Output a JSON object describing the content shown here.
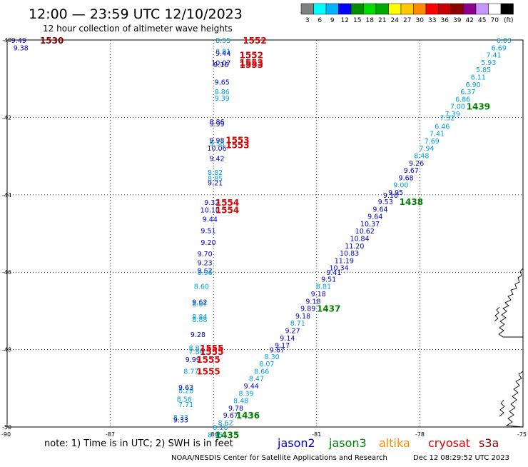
{
  "header": {
    "title": "12:00 — 23:59 UTC 12/10/2023",
    "subtitle": "12 hour collection of altimeter wave heights"
  },
  "colorbar": {
    "colors": [
      "#808080",
      "#00ffff",
      "#00b4ff",
      "#0000ff",
      "#008c00",
      "#00dc00",
      "#00aa00",
      "#ffff00",
      "#ffc800",
      "#ff8c00",
      "#ff0000",
      "#c80000",
      "#8c0000",
      "#8c008c",
      "#c896ff",
      "#ffffff",
      "#000000"
    ],
    "labels": [
      "3",
      "6",
      "9",
      "12",
      "15",
      "18",
      "21",
      "24",
      "27",
      "30",
      "33",
      "36",
      "39",
      "42",
      "45",
      "70",
      "(ft)"
    ]
  },
  "footer": {
    "note": "note:  1) Time is in UTC; 2) SWH is in feet",
    "credit": "NOAA/NESDIS Center for Satellite Applications and Research",
    "timestamp": "Dec 12 08:29:52 UTC 2023"
  },
  "legend": [
    {
      "name": "jason2",
      "color": "#0000cc"
    },
    {
      "name": "jason3",
      "color": "#008000"
    },
    {
      "name": "altika",
      "color": "#ff8c00"
    },
    {
      "name": "cryosat",
      "color": "#dd0000"
    },
    {
      "name": "s3a",
      "color": "#8b0000"
    }
  ],
  "chart_data": {
    "type": "scatter",
    "title": "12:00 — 23:59 UTC 12/10/2023",
    "subtitle": "12 hour collection of altimeter wave heights",
    "units": "ft",
    "xlim": [
      -90,
      -75
    ],
    "ylim": [
      -50,
      -40
    ],
    "x_ticks": [
      -90,
      -87,
      -84,
      -81,
      -78,
      -75
    ],
    "x_tick_labels": [
      "-90",
      "-87",
      "-84",
      "-81",
      "-78",
      "-75"
    ],
    "y_ticks": [
      -50,
      -48,
      -46,
      -44,
      -42,
      -40
    ],
    "y_tick_labels": [
      "-50",
      "-48",
      "-46",
      "-44",
      "-42",
      "-40"
    ],
    "grid": true,
    "points": [
      {
        "lon": -89.66,
        "lat": -40.0,
        "swh": "9.49",
        "sat": "jason2"
      },
      {
        "lon": -89.6,
        "lat": -40.19,
        "swh": "9.38",
        "sat": "jason2"
      },
      {
        "lon": -83.72,
        "lat": -40.0,
        "swh": "8.55",
        "sat": "altika"
      },
      {
        "lon": -83.72,
        "lat": -40.29,
        "swh": "8.81",
        "sat": "altika"
      },
      {
        "lon": -83.72,
        "lat": -40.33,
        "swh": "9.44",
        "sat": "jason2"
      },
      {
        "lon": -83.78,
        "lat": -40.58,
        "swh": "10.07",
        "sat": "jason2"
      },
      {
        "lon": -83.78,
        "lat": -40.63,
        "swh": "9.16",
        "sat": "jason2"
      },
      {
        "lon": -83.75,
        "lat": -41.08,
        "swh": "9.65",
        "sat": "jason2"
      },
      {
        "lon": -83.75,
        "lat": -41.33,
        "swh": "8.86",
        "sat": "altika"
      },
      {
        "lon": -83.75,
        "lat": -41.49,
        "swh": "9.39",
        "sat": "altika"
      },
      {
        "lon": -83.9,
        "lat": -42.1,
        "swh": "8.86",
        "sat": "jason2"
      },
      {
        "lon": -83.9,
        "lat": -42.16,
        "swh": "9.99",
        "sat": "jason2"
      },
      {
        "lon": -83.9,
        "lat": -42.58,
        "swh": "9.98",
        "sat": "jason2"
      },
      {
        "lon": -83.9,
        "lat": -42.67,
        "swh": "9.56",
        "sat": "altika"
      },
      {
        "lon": -83.9,
        "lat": -42.79,
        "swh": "10.06",
        "sat": "jason2"
      },
      {
        "lon": -83.9,
        "lat": -43.05,
        "swh": "9.42",
        "sat": "jason2"
      },
      {
        "lon": -83.95,
        "lat": -43.41,
        "swh": "8.82",
        "sat": "altika"
      },
      {
        "lon": -83.95,
        "lat": -43.57,
        "swh": "8.85",
        "sat": "altika"
      },
      {
        "lon": -83.95,
        "lat": -43.68,
        "swh": "9.21",
        "sat": "jason2"
      },
      {
        "lon": -84.05,
        "lat": -44.19,
        "swh": "9.32",
        "sat": "jason2"
      },
      {
        "lon": -84.1,
        "lat": -44.38,
        "swh": "10.10",
        "sat": "jason2"
      },
      {
        "lon": -84.1,
        "lat": -44.62,
        "swh": "9.44",
        "sat": "jason2"
      },
      {
        "lon": -84.15,
        "lat": -44.92,
        "swh": "9.51",
        "sat": "jason2"
      },
      {
        "lon": -84.15,
        "lat": -45.22,
        "swh": "9.20",
        "sat": "jason2"
      },
      {
        "lon": -84.25,
        "lat": -45.52,
        "swh": "9.70",
        "sat": "jason2"
      },
      {
        "lon": -84.25,
        "lat": -45.75,
        "swh": "9.23",
        "sat": "jason2"
      },
      {
        "lon": -84.25,
        "lat": -45.95,
        "swh": "9.62",
        "sat": "jason2"
      },
      {
        "lon": -84.25,
        "lat": -46.0,
        "swh": "8.96",
        "sat": "altika"
      },
      {
        "lon": -84.35,
        "lat": -46.36,
        "swh": "8.60",
        "sat": "altika"
      },
      {
        "lon": -84.4,
        "lat": -46.76,
        "swh": "9.62",
        "sat": "jason2"
      },
      {
        "lon": -84.4,
        "lat": -46.81,
        "swh": "8.67",
        "sat": "altika"
      },
      {
        "lon": -84.4,
        "lat": -47.14,
        "swh": "8.84",
        "sat": "altika"
      },
      {
        "lon": -84.4,
        "lat": -47.21,
        "swh": "8.88",
        "sat": "altika"
      },
      {
        "lon": -84.45,
        "lat": -47.6,
        "swh": "9.28",
        "sat": "jason2"
      },
      {
        "lon": -84.5,
        "lat": -47.95,
        "swh": "8.82",
        "sat": "altika"
      },
      {
        "lon": -84.5,
        "lat": -48.04,
        "swh": "7.84",
        "sat": "altika"
      },
      {
        "lon": -84.6,
        "lat": -48.25,
        "swh": "9.99",
        "sat": "jason2"
      },
      {
        "lon": -84.65,
        "lat": -48.55,
        "swh": "8.77",
        "sat": "altika"
      },
      {
        "lon": -84.8,
        "lat": -48.97,
        "swh": "9.63",
        "sat": "jason2"
      },
      {
        "lon": -84.8,
        "lat": -49.05,
        "swh": "8.28",
        "sat": "altika"
      },
      {
        "lon": -84.85,
        "lat": -49.27,
        "swh": "8.56",
        "sat": "altika"
      },
      {
        "lon": -84.8,
        "lat": -49.41,
        "swh": "7.71",
        "sat": "altika"
      },
      {
        "lon": -84.95,
        "lat": -49.74,
        "swh": "8.33",
        "sat": "altika"
      },
      {
        "lon": -84.95,
        "lat": -49.81,
        "swh": "9.33",
        "sat": "jason2"
      },
      {
        "lon": -75.55,
        "lat": -40.0,
        "swh": "6.03",
        "sat": "altika"
      },
      {
        "lon": -75.7,
        "lat": -40.19,
        "swh": "6.69",
        "sat": "altika"
      },
      {
        "lon": -75.85,
        "lat": -40.38,
        "swh": "7.41",
        "sat": "altika"
      },
      {
        "lon": -76.0,
        "lat": -40.57,
        "swh": "5.93",
        "sat": "altika"
      },
      {
        "lon": -76.15,
        "lat": -40.76,
        "swh": "5.85",
        "sat": "altika"
      },
      {
        "lon": -76.3,
        "lat": -40.95,
        "swh": "6.11",
        "sat": "altika"
      },
      {
        "lon": -76.45,
        "lat": -41.14,
        "swh": "6.90",
        "sat": "altika"
      },
      {
        "lon": -76.6,
        "lat": -41.33,
        "swh": "6.37",
        "sat": "altika"
      },
      {
        "lon": -76.75,
        "lat": -41.52,
        "swh": "6.86",
        "sat": "altika"
      },
      {
        "lon": -76.9,
        "lat": -41.71,
        "swh": "7.00",
        "sat": "altika"
      },
      {
        "lon": -77.05,
        "lat": -41.9,
        "swh": "7.39",
        "sat": "altika"
      },
      {
        "lon": -77.2,
        "lat": -42.0,
        "swh": "7.32",
        "sat": "altika"
      },
      {
        "lon": -77.35,
        "lat": -42.22,
        "swh": "6.46",
        "sat": "altika"
      },
      {
        "lon": -77.5,
        "lat": -42.41,
        "swh": "7.41",
        "sat": "altika"
      },
      {
        "lon": -77.65,
        "lat": -42.6,
        "swh": "7.69",
        "sat": "altika"
      },
      {
        "lon": -77.8,
        "lat": -42.79,
        "swh": "7.94",
        "sat": "altika"
      },
      {
        "lon": -77.95,
        "lat": -42.98,
        "swh": "8.48",
        "sat": "altika"
      },
      {
        "lon": -78.1,
        "lat": -43.17,
        "swh": "9.26",
        "sat": "jason2"
      },
      {
        "lon": -78.25,
        "lat": -43.36,
        "swh": "9.67",
        "sat": "jason2"
      },
      {
        "lon": -78.4,
        "lat": -43.55,
        "swh": "9.68",
        "sat": "jason2"
      },
      {
        "lon": -78.55,
        "lat": -43.74,
        "swh": "9.00",
        "sat": "altika"
      },
      {
        "lon": -78.7,
        "lat": -43.93,
        "swh": "9.95",
        "sat": "jason2"
      },
      {
        "lon": -78.85,
        "lat": -44.0,
        "swh": "9.10",
        "sat": "jason2"
      },
      {
        "lon": -79.0,
        "lat": -44.17,
        "swh": "9.53",
        "sat": "jason2"
      },
      {
        "lon": -79.15,
        "lat": -44.36,
        "swh": "9.64",
        "sat": "jason2"
      },
      {
        "lon": -79.3,
        "lat": -44.55,
        "swh": "9.64",
        "sat": "jason2"
      },
      {
        "lon": -79.45,
        "lat": -44.74,
        "swh": "10.37",
        "sat": "jason2"
      },
      {
        "lon": -79.6,
        "lat": -44.93,
        "swh": "10.62",
        "sat": "jason2"
      },
      {
        "lon": -79.75,
        "lat": -45.12,
        "swh": "10.84",
        "sat": "jason2"
      },
      {
        "lon": -79.9,
        "lat": -45.31,
        "swh": "11.20",
        "sat": "jason2"
      },
      {
        "lon": -80.05,
        "lat": -45.5,
        "swh": "10.83",
        "sat": "jason2"
      },
      {
        "lon": -80.2,
        "lat": -45.69,
        "swh": "11.19",
        "sat": "jason2"
      },
      {
        "lon": -80.35,
        "lat": -45.88,
        "swh": "10.34",
        "sat": "jason2"
      },
      {
        "lon": -80.5,
        "lat": -46.0,
        "swh": "9.41",
        "sat": "jason2"
      },
      {
        "lon": -80.65,
        "lat": -46.17,
        "swh": "9.51",
        "sat": "jason2"
      },
      {
        "lon": -80.8,
        "lat": -46.36,
        "swh": "8.81",
        "sat": "altika"
      },
      {
        "lon": -80.95,
        "lat": -46.55,
        "swh": "9.18",
        "sat": "jason2"
      },
      {
        "lon": -81.1,
        "lat": -46.74,
        "swh": "9.18",
        "sat": "jason2"
      },
      {
        "lon": -81.25,
        "lat": -46.93,
        "swh": "9.89",
        "sat": "jason2"
      },
      {
        "lon": -81.4,
        "lat": -47.12,
        "swh": "9.18",
        "sat": "jason2"
      },
      {
        "lon": -81.55,
        "lat": -47.31,
        "swh": "8.71",
        "sat": "altika"
      },
      {
        "lon": -81.7,
        "lat": -47.5,
        "swh": "9.27",
        "sat": "jason2"
      },
      {
        "lon": -81.85,
        "lat": -47.69,
        "swh": "9.14",
        "sat": "jason2"
      },
      {
        "lon": -82.0,
        "lat": -47.88,
        "swh": "9.17",
        "sat": "jason2"
      },
      {
        "lon": -82.15,
        "lat": -48.0,
        "swh": "9.67",
        "sat": "jason2"
      },
      {
        "lon": -82.3,
        "lat": -48.17,
        "swh": "8.30",
        "sat": "altika"
      },
      {
        "lon": -82.45,
        "lat": -48.36,
        "swh": "8.07",
        "sat": "altika"
      },
      {
        "lon": -82.6,
        "lat": -48.55,
        "swh": "8.66",
        "sat": "altika"
      },
      {
        "lon": -82.75,
        "lat": -48.74,
        "swh": "8.47",
        "sat": "altika"
      },
      {
        "lon": -82.9,
        "lat": -48.93,
        "swh": "9.44",
        "sat": "jason2"
      },
      {
        "lon": -83.05,
        "lat": -49.12,
        "swh": "8.39",
        "sat": "altika"
      },
      {
        "lon": -83.2,
        "lat": -49.31,
        "swh": "8.48",
        "sat": "altika"
      },
      {
        "lon": -83.35,
        "lat": -49.5,
        "swh": "9.78",
        "sat": "jason2"
      },
      {
        "lon": -83.5,
        "lat": -49.69,
        "swh": "9.67",
        "sat": "jason2"
      },
      {
        "lon": -83.65,
        "lat": -49.88,
        "swh": "8.62",
        "sat": "altika"
      },
      {
        "lon": -83.8,
        "lat": -50.0,
        "swh": "8.16",
        "sat": "altika"
      },
      {
        "lon": -83.95,
        "lat": -50.19,
        "swh": "8.95",
        "sat": "altika"
      }
    ],
    "time_labels": [
      {
        "lon": -88.7,
        "lat": -40.0,
        "text": "1530",
        "sat": "s3a"
      },
      {
        "lon": -82.8,
        "lat": -40.0,
        "text": "1552",
        "sat": "cryosat"
      },
      {
        "lon": -82.9,
        "lat": -40.38,
        "text": "1552",
        "sat": "cryosat"
      },
      {
        "lon": -82.9,
        "lat": -40.57,
        "text": "1553",
        "sat": "cryosat"
      },
      {
        "lon": -82.9,
        "lat": -40.63,
        "text": "1553",
        "sat": "cryosat"
      },
      {
        "lon": -83.3,
        "lat": -42.57,
        "text": "1553",
        "sat": "cryosat"
      },
      {
        "lon": -83.3,
        "lat": -42.7,
        "text": "1553",
        "sat": "cryosat"
      },
      {
        "lon": -83.6,
        "lat": -44.19,
        "text": "1554",
        "sat": "cryosat"
      },
      {
        "lon": -83.6,
        "lat": -44.38,
        "text": "1554",
        "sat": "cryosat"
      },
      {
        "lon": -84.05,
        "lat": -47.95,
        "text": "1555",
        "sat": "cryosat"
      },
      {
        "lon": -84.05,
        "lat": -48.04,
        "text": "1555",
        "sat": "cryosat"
      },
      {
        "lon": -84.15,
        "lat": -48.25,
        "text": "1555",
        "sat": "cryosat"
      },
      {
        "lon": -84.15,
        "lat": -48.55,
        "text": "1555",
        "sat": "cryosat"
      },
      {
        "lon": -76.3,
        "lat": -41.71,
        "text": "1439",
        "sat": "jason3"
      },
      {
        "lon": -78.25,
        "lat": -44.17,
        "text": "1438",
        "sat": "jason3"
      },
      {
        "lon": -80.65,
        "lat": -46.93,
        "text": "1437",
        "sat": "jason3"
      },
      {
        "lon": -83.0,
        "lat": -49.69,
        "text": "1436",
        "sat": "jason3"
      },
      {
        "lon": -83.6,
        "lat": -50.19,
        "text": "1435",
        "sat": "jason3"
      }
    ]
  }
}
